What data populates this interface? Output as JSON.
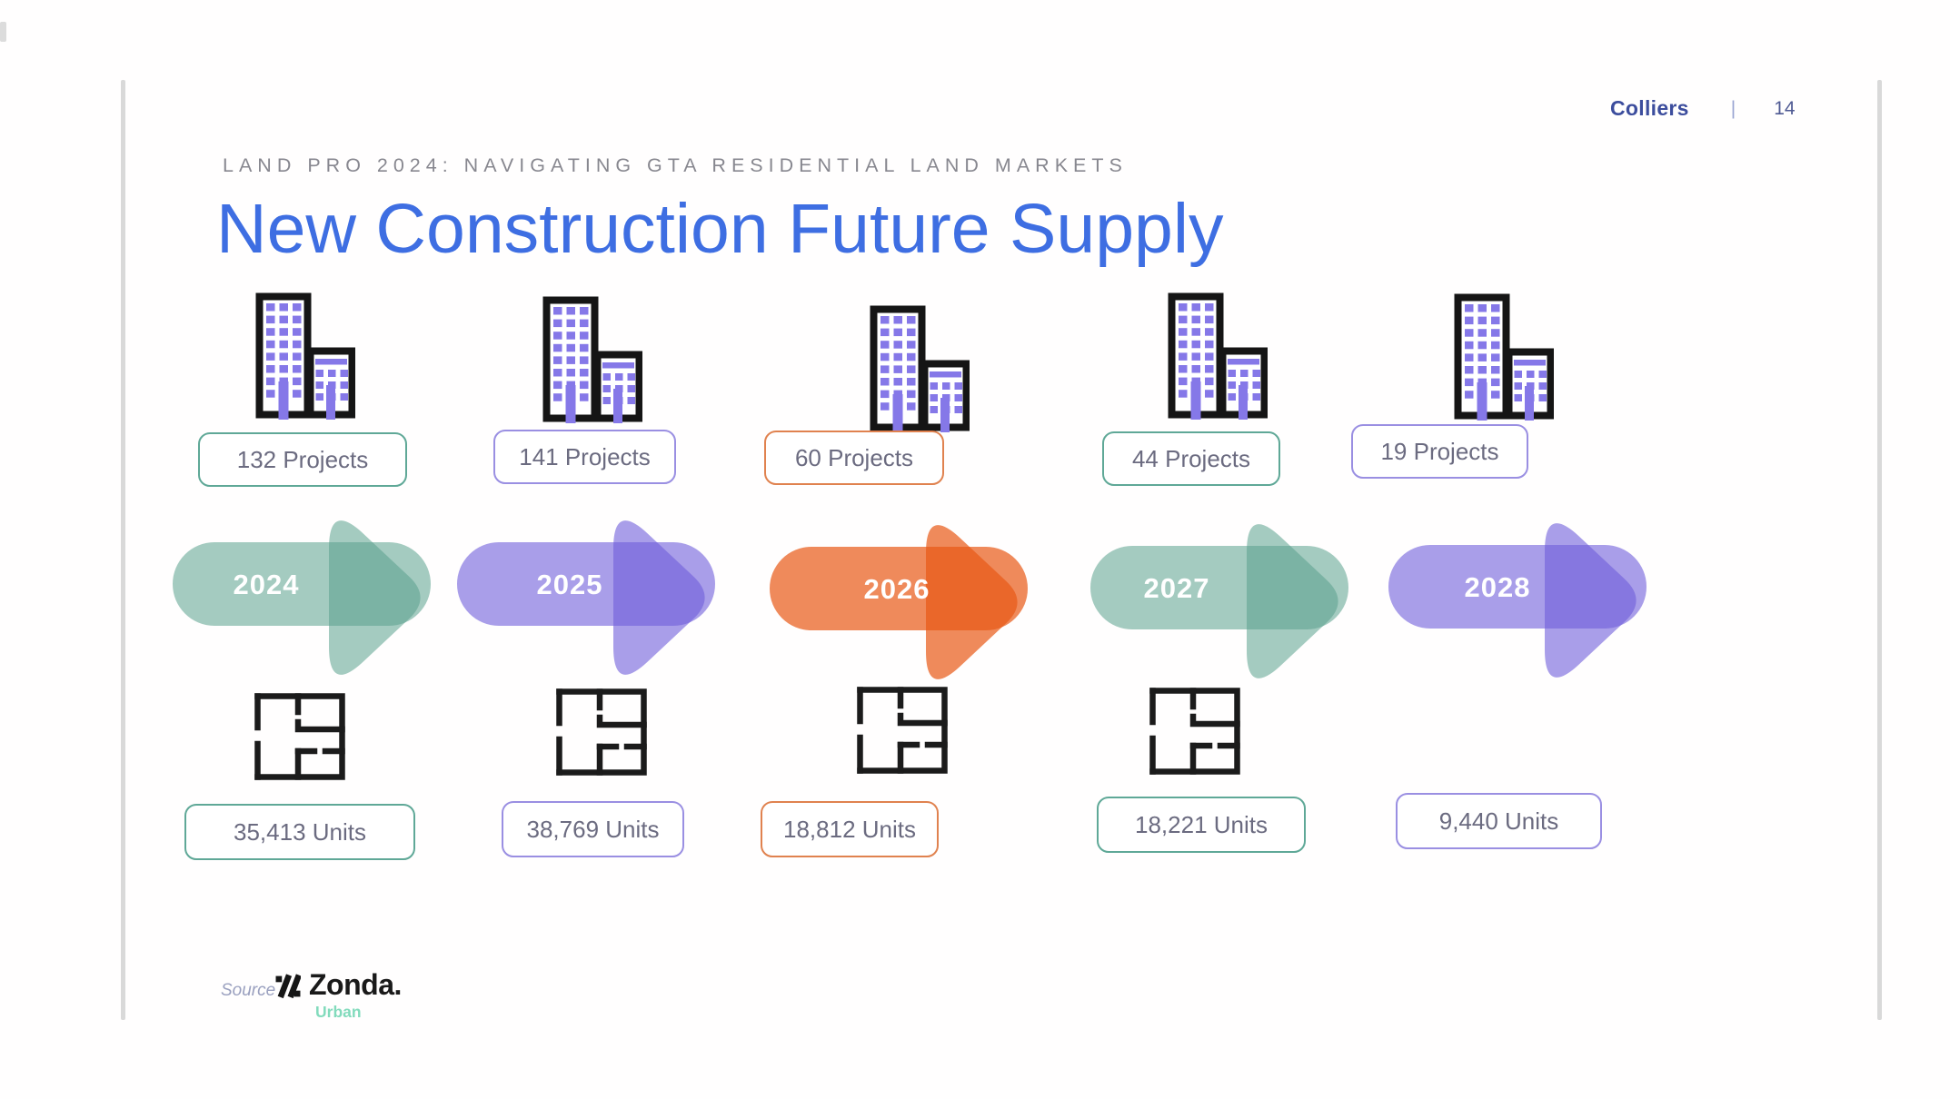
{
  "window": {
    "brand": "Colliers",
    "divider": "|",
    "page_number": "14"
  },
  "slide": {
    "eyebrow": "LAND PRO 2024: NAVIGATING GTA RESIDENTIAL LAND MARKETS",
    "title": "New Construction Future Supply",
    "title_color": "#3E6EE2"
  },
  "columns": [
    {
      "year": "2024",
      "projects_label": "132 Projects",
      "units_label": "35,413 Units",
      "theme": "teal",
      "has_floorplan": true
    },
    {
      "year": "2025",
      "projects_label": "141 Projects",
      "units_label": "38,769 Units",
      "theme": "purple",
      "has_floorplan": true
    },
    {
      "year": "2026",
      "projects_label": "60 Projects",
      "units_label": "18,812 Units",
      "theme": "orange",
      "has_floorplan": true
    },
    {
      "year": "2027",
      "projects_label": "44 Projects",
      "units_label": "18,221 Units",
      "theme": "teal",
      "has_floorplan": true
    },
    {
      "year": "2028",
      "projects_label": "19 Projects",
      "units_label": "9,440 Units",
      "theme": "purple",
      "has_floorplan": false
    }
  ],
  "themes": {
    "teal": {
      "arrow_fill": "#59A08C",
      "arrow_opacity": 0.55,
      "badge_border": "#5FA897"
    },
    "purple": {
      "arrow_fill": "#705DDA",
      "arrow_opacity": 0.6,
      "badge_border": "#9A8FE2"
    },
    "orange": {
      "arrow_fill": "#E85815",
      "arrow_opacity": 0.7,
      "badge_border": "#E0824F"
    }
  },
  "icon_colors": {
    "building_window_purple": "#8578E8",
    "building_outline": "#151515",
    "floorplan_stroke": "#1b1b1b"
  },
  "source": {
    "label": "Source",
    "brand": "Zonda.",
    "brand_sub": "Urban"
  },
  "chart_data": {
    "type": "table",
    "title": "New Construction Future Supply",
    "categories": [
      "2024",
      "2025",
      "2026",
      "2027",
      "2028"
    ],
    "series": [
      {
        "name": "Projects",
        "values": [
          132,
          141,
          60,
          44,
          19
        ]
      },
      {
        "name": "Units",
        "values": [
          35413,
          38769,
          18812,
          18221,
          9440
        ]
      }
    ]
  }
}
